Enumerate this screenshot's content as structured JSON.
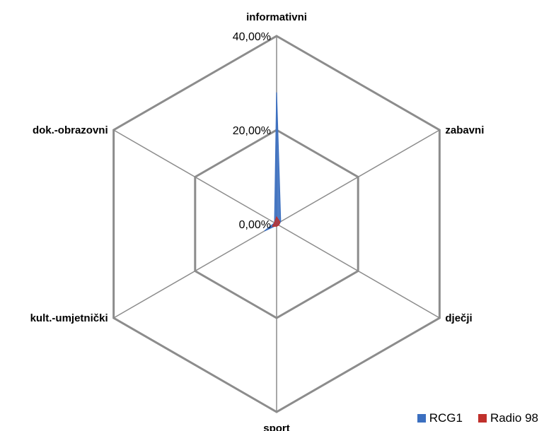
{
  "chart_data": {
    "type": "radar",
    "categories": [
      "informativni",
      "zabavni",
      "dječji",
      "sport",
      "kult.-umjetnički",
      "dok.-obrazovni"
    ],
    "tick_labels": [
      "0,00%",
      "20,00%",
      "40,00%"
    ],
    "rmax": 40,
    "series": [
      {
        "name": "RCG1",
        "color": "#3b6fc0",
        "values": [
          28,
          1,
          0.5,
          0.3,
          3,
          0.5
        ]
      },
      {
        "name": "Radio 98",
        "color": "#c0302b",
        "values": [
          1.5,
          0.8,
          0.5,
          0.5,
          1,
          0.5
        ]
      }
    ],
    "legend_position": "bottom-right",
    "grid": true
  }
}
